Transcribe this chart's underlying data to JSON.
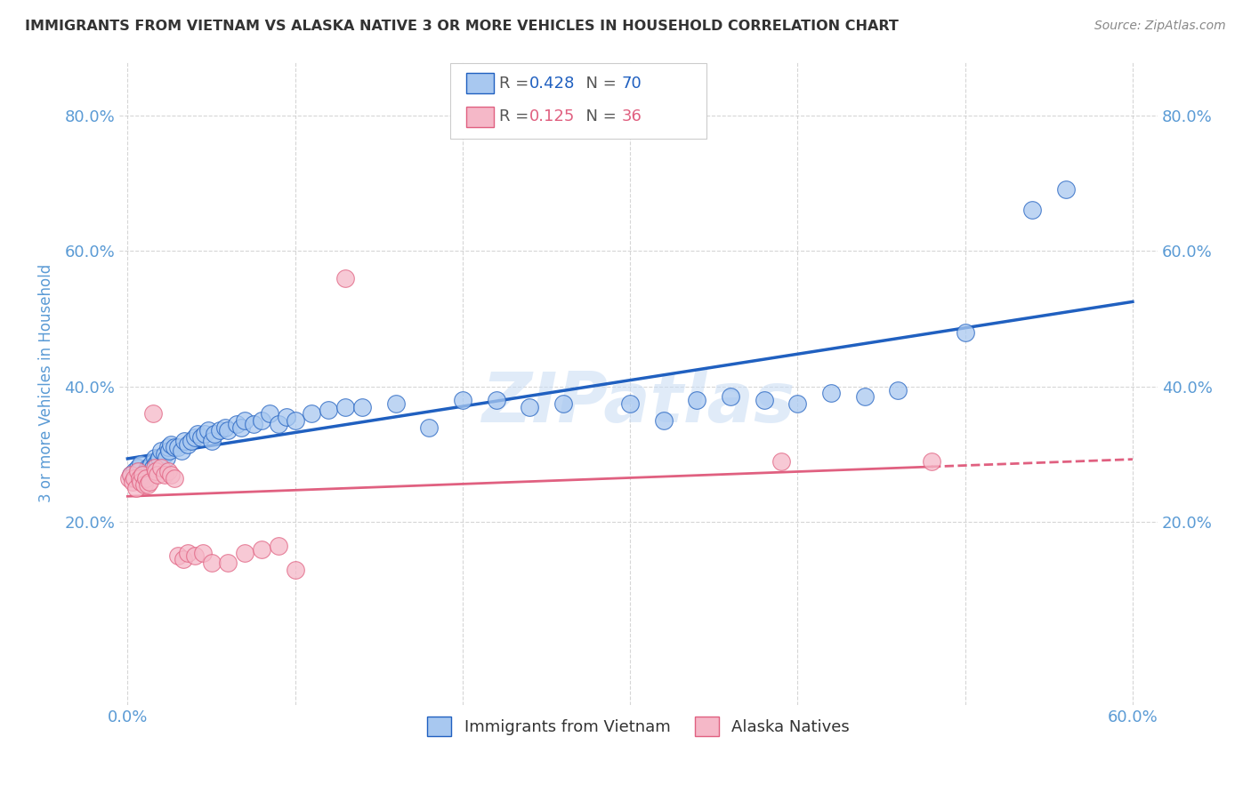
{
  "title": "IMMIGRANTS FROM VIETNAM VS ALASKA NATIVE 3 OR MORE VEHICLES IN HOUSEHOLD CORRELATION CHART",
  "source": "Source: ZipAtlas.com",
  "ylabel": "3 or more Vehicles in Household",
  "xlim": [
    -0.005,
    0.615
  ],
  "ylim": [
    -0.07,
    0.88
  ],
  "xticks": [
    0.0,
    0.1,
    0.2,
    0.3,
    0.4,
    0.5,
    0.6
  ],
  "xticklabels": [
    "0.0%",
    "",
    "",
    "",
    "",
    "",
    "60.0%"
  ],
  "yticks": [
    0.2,
    0.4,
    0.6,
    0.8
  ],
  "yticklabels": [
    "20.0%",
    "40.0%",
    "60.0%",
    "80.0%"
  ],
  "legend1_label": "Immigrants from Vietnam",
  "legend2_label": "Alaska Natives",
  "R1": 0.428,
  "N1": 70,
  "R2": 0.125,
  "N2": 36,
  "color_blue": "#A8C8F0",
  "color_pink": "#F5B8C8",
  "line_blue": "#2060C0",
  "line_pink": "#E06080",
  "background_color": "#FFFFFF",
  "grid_color": "#CCCCCC",
  "title_color": "#333333",
  "axis_label_color": "#5B9BD5",
  "tick_label_color": "#5B9BD5",
  "blue_scatter_x": [
    0.002,
    0.004,
    0.005,
    0.006,
    0.007,
    0.008,
    0.009,
    0.01,
    0.011,
    0.012,
    0.013,
    0.014,
    0.015,
    0.016,
    0.017,
    0.018,
    0.019,
    0.02,
    0.022,
    0.023,
    0.024,
    0.025,
    0.026,
    0.028,
    0.03,
    0.032,
    0.034,
    0.036,
    0.038,
    0.04,
    0.042,
    0.044,
    0.046,
    0.048,
    0.05,
    0.052,
    0.055,
    0.058,
    0.06,
    0.065,
    0.068,
    0.07,
    0.075,
    0.08,
    0.085,
    0.09,
    0.095,
    0.1,
    0.11,
    0.12,
    0.13,
    0.14,
    0.16,
    0.18,
    0.2,
    0.22,
    0.24,
    0.26,
    0.3,
    0.32,
    0.34,
    0.36,
    0.38,
    0.4,
    0.42,
    0.44,
    0.46,
    0.5,
    0.54,
    0.56
  ],
  "blue_scatter_y": [
    0.27,
    0.275,
    0.265,
    0.28,
    0.275,
    0.285,
    0.27,
    0.27,
    0.275,
    0.28,
    0.28,
    0.285,
    0.28,
    0.295,
    0.285,
    0.29,
    0.295,
    0.305,
    0.3,
    0.295,
    0.31,
    0.305,
    0.315,
    0.31,
    0.31,
    0.305,
    0.32,
    0.315,
    0.32,
    0.325,
    0.33,
    0.325,
    0.33,
    0.335,
    0.32,
    0.33,
    0.335,
    0.34,
    0.335,
    0.345,
    0.34,
    0.35,
    0.345,
    0.35,
    0.36,
    0.345,
    0.355,
    0.35,
    0.36,
    0.365,
    0.37,
    0.37,
    0.375,
    0.34,
    0.38,
    0.38,
    0.37,
    0.375,
    0.375,
    0.35,
    0.38,
    0.385,
    0.38,
    0.375,
    0.39,
    0.385,
    0.395,
    0.48,
    0.66,
    0.69
  ],
  "pink_scatter_x": [
    0.001,
    0.002,
    0.003,
    0.004,
    0.005,
    0.006,
    0.007,
    0.008,
    0.009,
    0.01,
    0.011,
    0.012,
    0.013,
    0.015,
    0.016,
    0.017,
    0.018,
    0.02,
    0.022,
    0.024,
    0.026,
    0.028,
    0.03,
    0.033,
    0.036,
    0.04,
    0.045,
    0.05,
    0.06,
    0.07,
    0.08,
    0.09,
    0.1,
    0.13,
    0.39,
    0.48
  ],
  "pink_scatter_y": [
    0.265,
    0.27,
    0.26,
    0.265,
    0.25,
    0.275,
    0.265,
    0.26,
    0.27,
    0.255,
    0.265,
    0.255,
    0.26,
    0.36,
    0.28,
    0.275,
    0.27,
    0.28,
    0.27,
    0.275,
    0.27,
    0.265,
    0.15,
    0.145,
    0.155,
    0.15,
    0.155,
    0.14,
    0.14,
    0.155,
    0.16,
    0.165,
    0.13,
    0.56,
    0.29,
    0.29
  ]
}
